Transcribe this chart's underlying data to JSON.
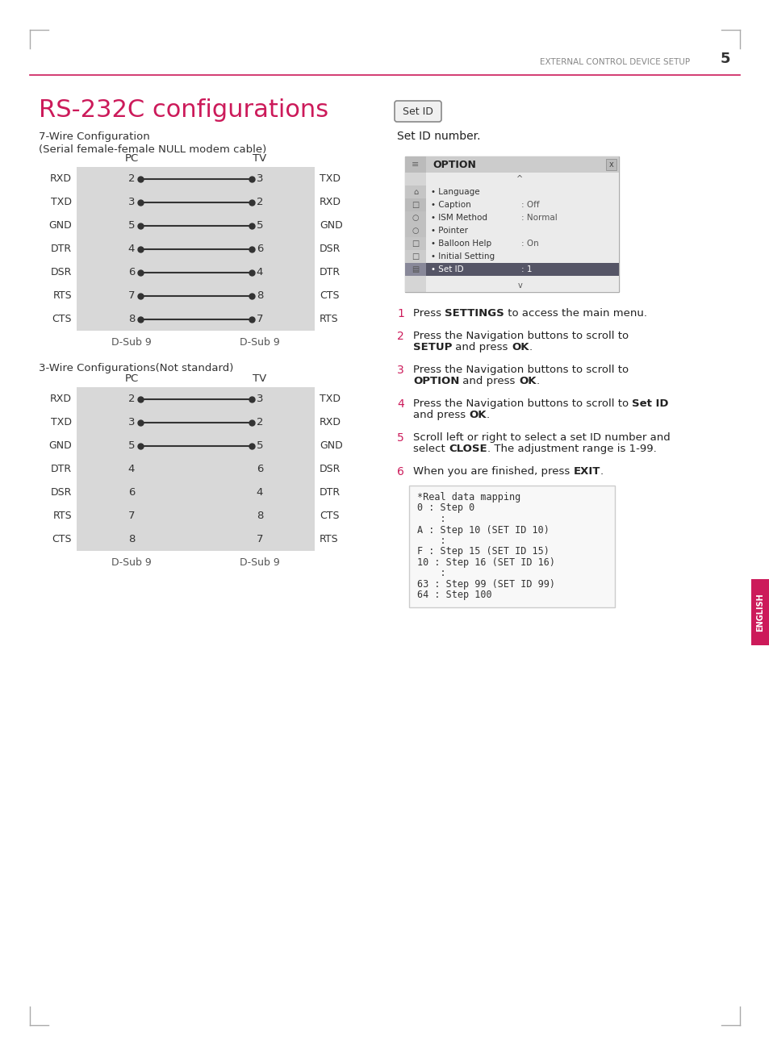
{
  "title": "RS-232C configurations",
  "page_header": "EXTERNAL CONTROL DEVICE SETUP",
  "page_number": "5",
  "bg_color": "#ffffff",
  "title_color": "#cc1a5a",
  "header_color": "#888888",
  "line_color": "#cc1a5a",
  "diagram_bg": "#d8d8d8",
  "wire7_label": "7-Wire Configuration",
  "wire7_sublabel": "(Serial female-female NULL modem cable)",
  "wire3_label": "3-Wire Configurations(Not standard)",
  "pc_label": "PC",
  "tv_label": "TV",
  "dsub_label": "D-Sub 9",
  "wire7_rows": [
    {
      "pc_pin": "2",
      "tv_pin": "3",
      "pc_sig": "RXD",
      "tv_sig": "TXD",
      "connected": true
    },
    {
      "pc_pin": "3",
      "tv_pin": "2",
      "pc_sig": "TXD",
      "tv_sig": "RXD",
      "connected": true
    },
    {
      "pc_pin": "5",
      "tv_pin": "5",
      "pc_sig": "GND",
      "tv_sig": "GND",
      "connected": true
    },
    {
      "pc_pin": "4",
      "tv_pin": "6",
      "pc_sig": "DTR",
      "tv_sig": "DSR",
      "connected": true
    },
    {
      "pc_pin": "6",
      "tv_pin": "4",
      "pc_sig": "DSR",
      "tv_sig": "DTR",
      "connected": true
    },
    {
      "pc_pin": "7",
      "tv_pin": "8",
      "pc_sig": "RTS",
      "tv_sig": "CTS",
      "connected": true
    },
    {
      "pc_pin": "8",
      "tv_pin": "7",
      "pc_sig": "CTS",
      "tv_sig": "RTS",
      "connected": true
    }
  ],
  "wire3_rows": [
    {
      "pc_pin": "2",
      "tv_pin": "3",
      "pc_sig": "RXD",
      "tv_sig": "TXD",
      "connected": true
    },
    {
      "pc_pin": "3",
      "tv_pin": "2",
      "pc_sig": "TXD",
      "tv_sig": "RXD",
      "connected": true
    },
    {
      "pc_pin": "5",
      "tv_pin": "5",
      "pc_sig": "GND",
      "tv_sig": "GND",
      "connected": true
    },
    {
      "pc_pin": "4",
      "tv_pin": "6",
      "pc_sig": "DTR",
      "tv_sig": "DSR",
      "connected": false
    },
    {
      "pc_pin": "6",
      "tv_pin": "4",
      "pc_sig": "DSR",
      "tv_sig": "DTR",
      "connected": false
    },
    {
      "pc_pin": "7",
      "tv_pin": "8",
      "pc_sig": "RTS",
      "tv_sig": "CTS",
      "connected": false
    },
    {
      "pc_pin": "8",
      "tv_pin": "7",
      "pc_sig": "CTS",
      "tv_sig": "RTS",
      "connected": false
    }
  ],
  "set_id_label": "Set ID",
  "set_id_desc": "Set ID number.",
  "option_menu_title": "OPTION",
  "option_menu_items": [
    {
      "label": "Language",
      "value": "",
      "selected": false
    },
    {
      "label": "Caption",
      "value": ": Off",
      "selected": false
    },
    {
      "label": "ISM Method",
      "value": ": Normal",
      "selected": false
    },
    {
      "label": "Pointer",
      "value": "",
      "selected": false
    },
    {
      "label": "Balloon Help",
      "value": ": On",
      "selected": false
    },
    {
      "label": "Initial Setting",
      "value": "",
      "selected": false
    },
    {
      "label": "Set ID",
      "value": ": 1",
      "selected": true
    }
  ],
  "steps": [
    {
      "num": "1",
      "text_parts": [
        {
          "text": "Press ",
          "bold": false
        },
        {
          "text": "SETTINGS",
          "bold": true
        },
        {
          "text": " to access the main menu.",
          "bold": false
        }
      ]
    },
    {
      "num": "2",
      "text_parts": [
        {
          "text": "Press the Navigation buttons to scroll to\n",
          "bold": false
        },
        {
          "text": "SETUP",
          "bold": true
        },
        {
          "text": " and press ",
          "bold": false
        },
        {
          "text": "OK",
          "bold": true
        },
        {
          "text": ".",
          "bold": false
        }
      ]
    },
    {
      "num": "3",
      "text_parts": [
        {
          "text": "Press the Navigation buttons to scroll to\n",
          "bold": false
        },
        {
          "text": "OPTION",
          "bold": true
        },
        {
          "text": " and press ",
          "bold": false
        },
        {
          "text": "OK",
          "bold": true
        },
        {
          "text": ".",
          "bold": false
        }
      ]
    },
    {
      "num": "4",
      "text_parts": [
        {
          "text": "Press the Navigation buttons to scroll to ",
          "bold": false
        },
        {
          "text": "Set ID",
          "bold": true
        },
        {
          "text": "\nand press ",
          "bold": false
        },
        {
          "text": "OK",
          "bold": true
        },
        {
          "text": ".",
          "bold": false
        }
      ]
    },
    {
      "num": "5",
      "text_parts": [
        {
          "text": "Scroll left or right to select a set ID number and\nselect ",
          "bold": false
        },
        {
          "text": "CLOSE",
          "bold": true
        },
        {
          "text": ". The adjustment range is 1-99.",
          "bold": false
        }
      ]
    },
    {
      "num": "6",
      "text_parts": [
        {
          "text": "When you are finished, press ",
          "bold": false
        },
        {
          "text": "EXIT",
          "bold": true
        },
        {
          "text": ".",
          "bold": false
        }
      ]
    }
  ],
  "real_data_lines": [
    "*Real data mapping",
    "0 : Step 0",
    "    :",
    "A : Step 10 (SET ID 10)",
    "    :",
    "F : Step 15 (SET ID 15)",
    "10 : Step 16 (SET ID 16)",
    "    :",
    "63 : Step 99 (SET ID 99)",
    "64 : Step 100"
  ],
  "english_tab_color": "#cc1a5a",
  "english_text": "ENGLISH"
}
